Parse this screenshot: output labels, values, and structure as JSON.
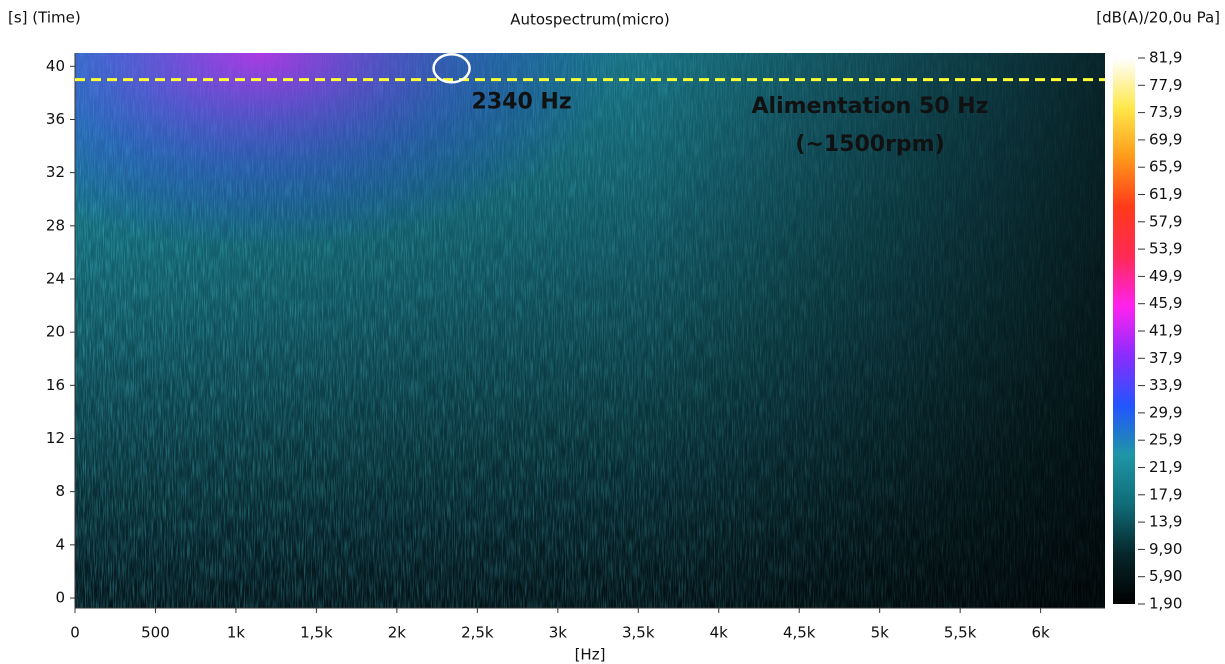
{
  "chart_data": {
    "type": "spectrogram",
    "title": "Autospectrum(micro)",
    "y_label": "[s] (Time)",
    "x_label": "[Hz]",
    "colorbar_label": "[dB(A)/20,0u Pa]",
    "xlim": [
      0,
      6400
    ],
    "ylim": [
      -0.75,
      41
    ],
    "xticks": [
      0,
      500,
      {
        "value": 1000,
        "label": "1k"
      },
      {
        "value": 1500,
        "label": "1,5k"
      },
      {
        "value": 2000,
        "label": "2k"
      },
      {
        "value": 2500,
        "label": "2,5k"
      },
      {
        "value": 3000,
        "label": "3k"
      },
      {
        "value": 3500,
        "label": "3,5k"
      },
      {
        "value": 4000,
        "label": "4k"
      },
      {
        "value": 4500,
        "label": "4,5k"
      },
      {
        "value": 5000,
        "label": "5k"
      },
      {
        "value": 5500,
        "label": "5,5k"
      },
      {
        "value": 6000,
        "label": "6k"
      }
    ],
    "yticks": [
      0,
      4,
      8,
      12,
      16,
      20,
      24,
      28,
      32,
      36,
      40
    ],
    "clim": [
      1.9,
      81.9
    ],
    "cticks": [
      {
        "value": 81.9,
        "label": "81,9"
      },
      {
        "value": 77.9,
        "label": "77,9"
      },
      {
        "value": 73.9,
        "label": "73,9"
      },
      {
        "value": 69.9,
        "label": "69,9"
      },
      {
        "value": 65.9,
        "label": "65,9"
      },
      {
        "value": 61.9,
        "label": "61,9"
      },
      {
        "value": 57.9,
        "label": "57,9"
      },
      {
        "value": 53.9,
        "label": "53,9"
      },
      {
        "value": 49.9,
        "label": "49,9"
      },
      {
        "value": 45.9,
        "label": "45,9"
      },
      {
        "value": 41.9,
        "label": "41,9"
      },
      {
        "value": 37.9,
        "label": "37,9"
      },
      {
        "value": 33.9,
        "label": "33,9"
      },
      {
        "value": 29.9,
        "label": "29,9"
      },
      {
        "value": 25.9,
        "label": "25,9"
      },
      {
        "value": 21.9,
        "label": "21,9"
      },
      {
        "value": 17.9,
        "label": "17,9"
      },
      {
        "value": 13.9,
        "label": "13,9"
      },
      {
        "value": 9.9,
        "label": "9,90"
      },
      {
        "value": 5.9,
        "label": "5,90"
      },
      {
        "value": 1.9,
        "label": "1,90"
      }
    ],
    "colormap": [
      "#000000",
      "#06262a",
      "#0f6c78",
      "#1f96a6",
      "#2255ff",
      "#8a2cff",
      "#ff22ee",
      "#ff2a55",
      "#ff3a1a",
      "#ff9a1a",
      "#ffe84a",
      "#ffffff"
    ],
    "reference_line": {
      "y": 39,
      "color": "#ffff33",
      "label": "Alimentation 50 Hz",
      "sublabel": "(~1500rpm)"
    },
    "marker": {
      "x": 2340,
      "y": 40,
      "label": "2340 Hz",
      "color": "#ffffff"
    }
  }
}
